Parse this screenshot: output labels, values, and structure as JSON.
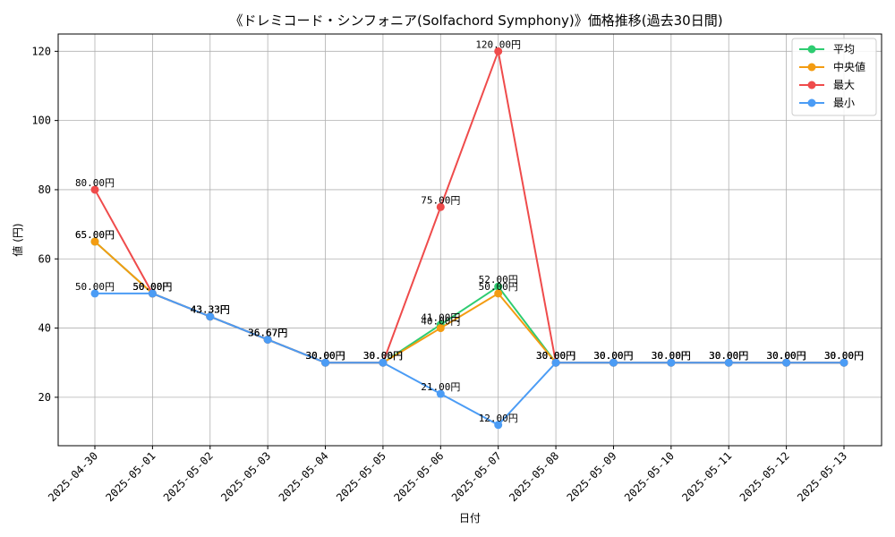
{
  "chart_data": {
    "type": "line",
    "title": "《ドレミコード・シンフォニア(Solfachord Symphony)》価格推移(過去30日間)",
    "xlabel": "日付",
    "ylabel": "値 (円)",
    "ylim": [
      6,
      125
    ],
    "yticks": [
      20,
      40,
      60,
      80,
      100,
      120
    ],
    "grid": true,
    "legend_position": "top-right",
    "value_suffix": "円",
    "categories": [
      "2025-04-30",
      "2025-05-01",
      "2025-05-02",
      "2025-05-03",
      "2025-05-04",
      "2025-05-05",
      "2025-05-06",
      "2025-05-07",
      "2025-05-08",
      "2025-05-09",
      "2025-05-10",
      "2025-05-11",
      "2025-05-12",
      "2025-05-13"
    ],
    "series": [
      {
        "name": "平均",
        "color": "#2ecc71",
        "values": [
          65.0,
          50.0,
          43.33,
          36.67,
          30.0,
          30.0,
          41.0,
          52.0,
          30.0,
          30.0,
          30.0,
          30.0,
          30.0,
          30.0
        ]
      },
      {
        "name": "中央値",
        "color": "#f39c12",
        "values": [
          65.0,
          50.0,
          43.33,
          36.67,
          30.0,
          30.0,
          40.0,
          50.0,
          30.0,
          30.0,
          30.0,
          30.0,
          30.0,
          30.0
        ]
      },
      {
        "name": "最大",
        "color": "#ef4b4b",
        "values": [
          80.0,
          50.0,
          43.33,
          36.67,
          30.0,
          30.0,
          75.0,
          120.0,
          30.0,
          30.0,
          30.0,
          30.0,
          30.0,
          30.0
        ]
      },
      {
        "name": "最小",
        "color": "#4b9cf5",
        "values": [
          50.0,
          50.0,
          43.33,
          36.67,
          30.0,
          30.0,
          21.0,
          12.0,
          30.0,
          30.0,
          30.0,
          30.0,
          30.0,
          30.0
        ]
      }
    ]
  }
}
